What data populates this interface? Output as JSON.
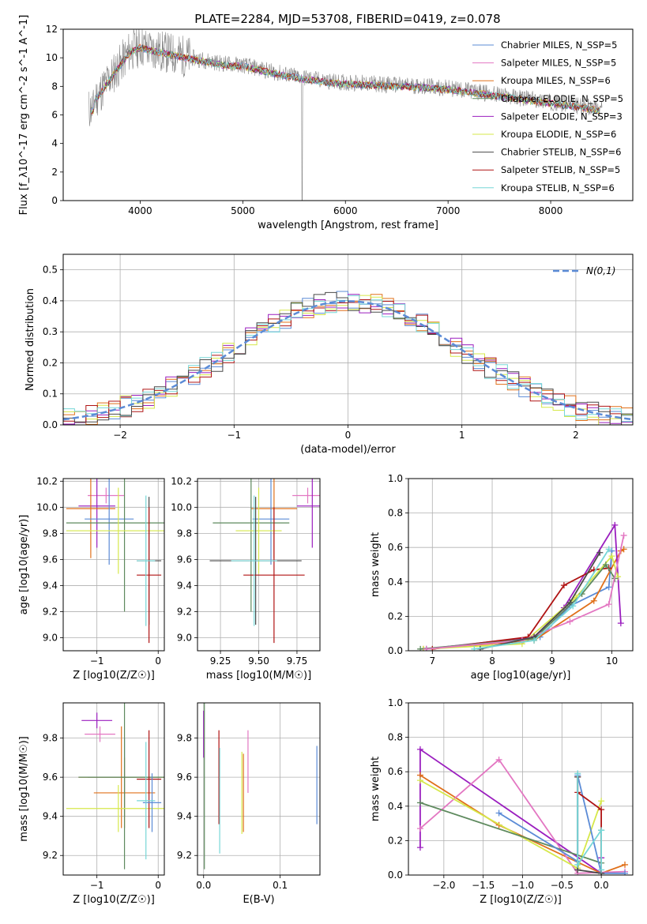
{
  "figure_title": "PLATE=2284, MJD=53708, FIBERID=0419, z=0.078",
  "colors": {
    "blue": "#5b8bd6",
    "pink": "#e377c2",
    "orange": "#e0701a",
    "green": "#5e8a5e",
    "purple": "#9b1fbf",
    "yellow": "#d6e84a",
    "darkgray": "#4a4a4a",
    "red": "#b01414",
    "cyan": "#76d7d7",
    "gray": "#888888",
    "grid": "#b0b0b0"
  },
  "chart_data": [
    {
      "id": "spectrum",
      "type": "line",
      "title": "PLATE=2284, MJD=53708, FIBERID=0419, z=0.078",
      "xlabel": "wavelength [Angstrom, rest frame]",
      "ylabel": "Flux [f_λ10^-17 erg cm^-2 s^-1 A^-1]",
      "xlim": [
        3250,
        8800
      ],
      "ylim": [
        0,
        12
      ],
      "xticks": [
        4000,
        5000,
        6000,
        7000,
        8000
      ],
      "yticks": [
        0,
        2,
        4,
        6,
        8,
        10,
        12
      ],
      "grid": false,
      "legend_position": "top-right",
      "data_envelope": {
        "x": [
          3550,
          3700,
          3900,
          4000,
          4100,
          4300,
          4500,
          4800,
          5000,
          5300,
          5600,
          5900,
          6200,
          6500,
          6800,
          7100,
          7400,
          7700,
          8000,
          8300,
          8500
        ],
        "y": [
          7.0,
          8.5,
          10.5,
          10.8,
          10.6,
          10.3,
          10.0,
          9.6,
          9.5,
          9.0,
          8.6,
          8.3,
          8.2,
          8.1,
          8.0,
          7.8,
          7.5,
          7.2,
          6.9,
          6.6,
          6.4
        ]
      },
      "series": [
        {
          "name": "Chabrier MILES, N_SSP=5",
          "color": "#5b8bd6"
        },
        {
          "name": "Salpeter MILES, N_SSP=5",
          "color": "#e377c2"
        },
        {
          "name": "Kroupa MILES, N_SSP=6",
          "color": "#e0701a"
        },
        {
          "name": "Chabrier ELODIE, N_SSP=5",
          "color": "#5e8a5e"
        },
        {
          "name": "Salpeter ELODIE, N_SSP=3",
          "color": "#9b1fbf"
        },
        {
          "name": "Kroupa ELODIE, N_SSP=6",
          "color": "#d6e84a"
        },
        {
          "name": "Chabrier STELIB, N_SSP=6",
          "color": "#4a4a4a"
        },
        {
          "name": "Salpeter STELIB, N_SSP=5",
          "color": "#b01414"
        },
        {
          "name": "Kroupa STELIB, N_SSP=6",
          "color": "#76d7d7"
        }
      ]
    },
    {
      "id": "residuals",
      "type": "histogram",
      "xlabel": "(data-model)/error",
      "ylabel": "Normed distribution",
      "xlim": [
        -2.5,
        2.5
      ],
      "ylim": [
        0,
        0.55
      ],
      "xticks": [
        -2,
        -1,
        0,
        1,
        2
      ],
      "yticks": [
        0.0,
        0.1,
        0.2,
        0.3,
        0.4,
        0.5
      ],
      "grid": true,
      "legend_position": "top-right",
      "reference_curve": {
        "name": "N(0,1)",
        "type": "gaussian",
        "mean": 0,
        "sigma": 1,
        "color": "#5b8bd6"
      },
      "bin_width": 0.1,
      "series": [
        {
          "color": "#5b8bd6",
          "seed": 1
        },
        {
          "color": "#e0701a",
          "seed": 2
        },
        {
          "color": "#9b1fbf",
          "seed": 3
        },
        {
          "color": "#d6e84a",
          "seed": 4
        },
        {
          "color": "#b01414",
          "seed": 5
        },
        {
          "color": "#76d7d7",
          "seed": 6
        },
        {
          "color": "#4a4a4a",
          "seed": 7
        }
      ]
    },
    {
      "id": "age_vs_Z",
      "type": "errorbar",
      "xlabel": "Z [log10(Z/Z☉)]",
      "ylabel": "age  [log10(age/yr)]",
      "xlim": [
        -1.55,
        0.1
      ],
      "ylim": [
        8.9,
        10.22
      ],
      "xticks": [
        -1,
        0
      ],
      "yticks": [
        9.0,
        9.2,
        9.4,
        9.6,
        9.8,
        10.0,
        10.2
      ],
      "grid": true,
      "points": [
        {
          "x": -0.85,
          "y": 10.09,
          "xerr": 0.3,
          "yerr": 0.06,
          "color": "#e377c2"
        },
        {
          "x": -1.0,
          "y": 10.01,
          "xerr": 0.3,
          "yerr": 0.32,
          "color": "#9b1fbf"
        },
        {
          "x": -1.1,
          "y": 9.99,
          "xerr": 0.4,
          "yerr": 0.38,
          "color": "#e0701a"
        },
        {
          "x": -0.8,
          "y": 9.91,
          "xerr": 0.4,
          "yerr": 0.35,
          "color": "#5b8bd6"
        },
        {
          "x": -0.55,
          "y": 9.88,
          "xerr": 0.95,
          "yerr": 0.68,
          "color": "#5e8a5e"
        },
        {
          "x": -0.65,
          "y": 9.82,
          "xerr": 0.85,
          "yerr": 0.33,
          "color": "#d6e84a"
        },
        {
          "x": -0.15,
          "y": 9.59,
          "xerr": 0.2,
          "yerr": 0.49,
          "color": "#4a4a4a"
        },
        {
          "x": -0.15,
          "y": 9.48,
          "xerr": 0.2,
          "yerr": 0.52,
          "color": "#b01414"
        },
        {
          "x": -0.2,
          "y": 9.59,
          "xerr": 0.15,
          "yerr": 0.5,
          "color": "#76d7d7"
        }
      ]
    },
    {
      "id": "age_vs_mass",
      "type": "errorbar",
      "xlabel": "mass [log10(M/M☉)]",
      "ylabel": "",
      "xlim": [
        9.1,
        9.9
      ],
      "ylim": [
        8.9,
        10.22
      ],
      "xticks": [
        9.25,
        9.5,
        9.75
      ],
      "yticks": [
        9.0,
        9.2,
        9.4,
        9.6,
        9.8,
        10.0,
        10.2
      ],
      "grid": true,
      "points": [
        {
          "x": 9.82,
          "y": 10.09,
          "xerr": 0.1,
          "yerr": 0.06,
          "color": "#e377c2"
        },
        {
          "x": 9.85,
          "y": 10.01,
          "xerr": 0.1,
          "yerr": 0.32,
          "color": "#9b1fbf"
        },
        {
          "x": 9.6,
          "y": 9.99,
          "xerr": 0.15,
          "yerr": 0.38,
          "color": "#e0701a"
        },
        {
          "x": 9.58,
          "y": 9.91,
          "xerr": 0.12,
          "yerr": 0.35,
          "color": "#5b8bd6"
        },
        {
          "x": 9.45,
          "y": 9.88,
          "xerr": 0.25,
          "yerr": 0.68,
          "color": "#5e8a5e"
        },
        {
          "x": 9.5,
          "y": 9.82,
          "xerr": 0.15,
          "yerr": 0.33,
          "color": "#d6e84a"
        },
        {
          "x": 9.48,
          "y": 9.59,
          "xerr": 0.3,
          "yerr": 0.49,
          "color": "#4a4a4a"
        },
        {
          "x": 9.6,
          "y": 9.48,
          "xerr": 0.2,
          "yerr": 0.52,
          "color": "#b01414"
        },
        {
          "x": 9.47,
          "y": 9.59,
          "xerr": 0.15,
          "yerr": 0.5,
          "color": "#76d7d7"
        }
      ]
    },
    {
      "id": "massweight_vs_age",
      "type": "line",
      "xlabel": "age  [log10(age/yr)]",
      "ylabel": "mass weight",
      "xlim": [
        6.6,
        10.35
      ],
      "ylim": [
        0,
        1
      ],
      "xticks": [
        7,
        8,
        9,
        10
      ],
      "yticks": [
        0.0,
        0.2,
        0.4,
        0.6,
        0.8,
        1.0
      ],
      "grid": true,
      "series": [
        {
          "color": "#5b8bd6",
          "x": [
            6.9,
            8.8,
            9.3,
            9.95,
            10.0
          ],
          "y": [
            0.01,
            0.08,
            0.26,
            0.37,
            0.58
          ]
        },
        {
          "color": "#e0701a",
          "x": [
            6.85,
            8.7,
            9.7,
            10.15,
            10.2
          ],
          "y": [
            0.01,
            0.06,
            0.29,
            0.58,
            0.59
          ]
        },
        {
          "color": "#9b1fbf",
          "x": [
            6.9,
            8.7,
            9.2,
            10.05,
            10.15
          ],
          "y": [
            0.01,
            0.08,
            0.25,
            0.73,
            0.16
          ]
        },
        {
          "color": "#b01414",
          "x": [
            7.0,
            8.6,
            9.2,
            9.7,
            9.95
          ],
          "y": [
            0.01,
            0.08,
            0.38,
            0.47,
            0.48
          ]
        },
        {
          "color": "#d6e84a",
          "x": [
            6.85,
            8.5,
            9.4,
            10.0,
            10.1
          ],
          "y": [
            0.01,
            0.04,
            0.31,
            0.55,
            0.43
          ]
        },
        {
          "color": "#5e8a5e",
          "x": [
            6.8,
            8.7,
            9.5,
            9.9,
            10.05
          ],
          "y": [
            0.01,
            0.07,
            0.33,
            0.5,
            0.42
          ]
        },
        {
          "color": "#e377c2",
          "x": [
            6.9,
            8.5,
            9.3,
            9.95,
            10.2
          ],
          "y": [
            0.01,
            0.06,
            0.17,
            0.27,
            0.67
          ]
        },
        {
          "color": "#4a4a4a",
          "x": [
            7.8,
            8.7,
            9.3,
            9.8
          ],
          "y": [
            0.01,
            0.08,
            0.28,
            0.57
          ]
        },
        {
          "color": "#76d7d7",
          "x": [
            7.7,
            8.7,
            9.35,
            9.95
          ],
          "y": [
            0.01,
            0.06,
            0.26,
            0.59
          ]
        }
      ]
    },
    {
      "id": "mass_vs_Z",
      "type": "errorbar",
      "xlabel": "Z [log10(Z/Z☉)]",
      "ylabel": "mass [log10(M/M☉)]",
      "xlim": [
        -1.55,
        0.1
      ],
      "ylim": [
        9.1,
        9.98
      ],
      "xticks": [
        -1,
        0
      ],
      "yticks": [
        9.2,
        9.4,
        9.6,
        9.8
      ],
      "grid": true,
      "points": [
        {
          "x": -1.0,
          "y": 9.89,
          "xerr": 0.25,
          "yerr": 0.04,
          "color": "#9b1fbf"
        },
        {
          "x": -0.95,
          "y": 9.82,
          "xerr": 0.25,
          "yerr": 0.04,
          "color": "#e377c2"
        },
        {
          "x": -0.55,
          "y": 9.6,
          "xerr": 0.6,
          "yerr": 0.2,
          "color": "#5b8bd6"
        },
        {
          "x": -0.6,
          "y": 9.6,
          "xerr": 0.7,
          "yerr": 0.26,
          "color": "#e0701a"
        },
        {
          "x": -0.55,
          "y": 9.52,
          "xerr": 0.5,
          "yerr": 0.18,
          "color": "#e0701a"
        },
        {
          "x": -0.55,
          "y": 9.6,
          "xerr": 0.75,
          "yerr": 0.47,
          "color": "#5e8a5e"
        },
        {
          "x": -0.65,
          "y": 9.44,
          "xerr": 0.85,
          "yerr": 0.12,
          "color": "#d6e84a"
        },
        {
          "x": -0.15,
          "y": 9.59,
          "xerr": 0.2,
          "yerr": 0.25,
          "color": "#b01414"
        },
        {
          "x": -0.1,
          "y": 9.47,
          "xerr": 0.15,
          "yerr": 0.15,
          "color": "#5b8bd6"
        },
        {
          "x": -0.2,
          "y": 9.48,
          "xerr": 0.15,
          "yerr": 0.3,
          "color": "#76d7d7"
        }
      ]
    },
    {
      "id": "mass_vs_EBV",
      "type": "errorbar",
      "xlabel": "E(B-V)",
      "ylabel": "",
      "xlim": [
        -0.008,
        0.152
      ],
      "ylim": [
        9.1,
        9.98
      ],
      "xticks": [
        0.0,
        0.1
      ],
      "yticks": [
        9.2,
        9.4,
        9.6,
        9.8
      ],
      "grid": true,
      "points": [
        {
          "x": 0.0,
          "y": 9.82,
          "xerr": 0,
          "yerr": 0.12,
          "color": "#9b1fbf"
        },
        {
          "x": 0.001,
          "y": 9.6,
          "xerr": 0,
          "yerr": 0.47,
          "color": "#5e8a5e"
        },
        {
          "x": 0.02,
          "y": 9.6,
          "xerr": 0,
          "yerr": 0.24,
          "color": "#b01414"
        },
        {
          "x": 0.021,
          "y": 9.48,
          "xerr": 0,
          "yerr": 0.27,
          "color": "#76d7d7"
        },
        {
          "x": 0.05,
          "y": 9.52,
          "xerr": 0,
          "yerr": 0.21,
          "color": "#d6e84a"
        },
        {
          "x": 0.052,
          "y": 9.52,
          "xerr": 0,
          "yerr": 0.2,
          "color": "#e0701a"
        },
        {
          "x": 0.058,
          "y": 9.68,
          "xerr": 0,
          "yerr": 0.16,
          "color": "#e377c2"
        },
        {
          "x": 0.148,
          "y": 9.56,
          "xerr": 0,
          "yerr": 0.2,
          "color": "#5b8bd6"
        }
      ]
    },
    {
      "id": "massweight_vs_Z",
      "type": "line",
      "xlabel": "Z [log10(Z/Z☉)]",
      "ylabel": "mass weight",
      "xlim": [
        -2.45,
        0.4
      ],
      "ylim": [
        0,
        1
      ],
      "xticks": [
        -2.0,
        -1.5,
        -1.0,
        -0.5,
        0.0
      ],
      "yticks": [
        0.0,
        0.2,
        0.4,
        0.6,
        0.8,
        1.0
      ],
      "grid": true,
      "series": [
        {
          "color": "#9b1fbf",
          "x": [
            -2.3,
            -2.3,
            0.0,
            0.0
          ],
          "y": [
            0.16,
            0.73,
            0.01,
            0.1
          ]
        },
        {
          "color": "#e0701a",
          "x": [
            -2.3,
            -1.3,
            0.0,
            0.3
          ],
          "y": [
            0.58,
            0.29,
            0.01,
            0.06
          ]
        },
        {
          "color": "#e377c2",
          "x": [
            -2.3,
            -1.3,
            -0.3,
            0.3
          ],
          "y": [
            0.27,
            0.67,
            0.01,
            0.02
          ]
        },
        {
          "color": "#d6e84a",
          "x": [
            -2.3,
            -0.3,
            0.0
          ],
          "y": [
            0.55,
            0.04,
            0.43
          ]
        },
        {
          "color": "#5e8a5e",
          "x": [
            -2.3,
            0.0,
            0.0
          ],
          "y": [
            0.42,
            0.07,
            0.26
          ]
        },
        {
          "color": "#5b8bd6",
          "x": [
            -1.3,
            -0.3,
            -0.3,
            0.0,
            0.3
          ],
          "y": [
            0.36,
            0.08,
            0.58,
            0.01,
            0.01
          ]
        },
        {
          "color": "#b01414",
          "x": [
            -0.3,
            -0.3,
            0.0,
            0.0
          ],
          "y": [
            0.57,
            0.48,
            0.38,
            0.01
          ]
        },
        {
          "color": "#4a4a4a",
          "x": [
            -0.3,
            -0.3,
            0.0
          ],
          "y": [
            0.57,
            0.03,
            0.01
          ]
        },
        {
          "color": "#76d7d7",
          "x": [
            -0.3,
            -0.3,
            0.0,
            0.0
          ],
          "y": [
            0.59,
            0.06,
            0.26,
            0.03
          ]
        }
      ]
    }
  ]
}
